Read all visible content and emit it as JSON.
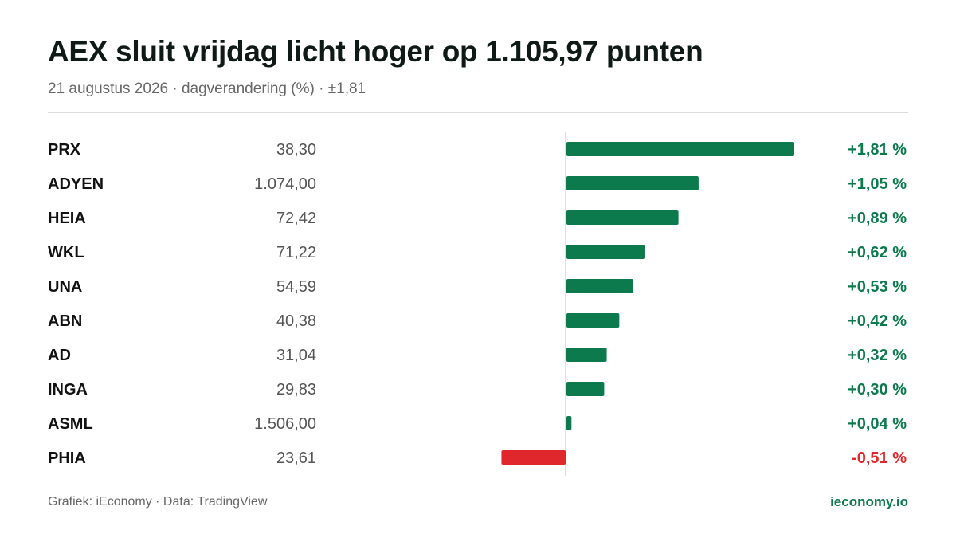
{
  "header": {
    "title": "AEX sluit vrijdag licht hoger op 1.105,97 punten",
    "subtitle": "21 augustus 2026 · dagverandering (%) · ±1,81"
  },
  "footer": {
    "source": "Grafiek: iEconomy · Data: TradingView",
    "brand": "ieconomy.io"
  },
  "colors": {
    "positive": "#0d7a4e",
    "negative": "#e0282c",
    "ticker": "#111111",
    "price": "#555555",
    "axis": "#d6d6d6"
  },
  "chart_data": {
    "type": "bar",
    "orientation": "horizontal",
    "xlim": [
      -1.81,
      1.81
    ],
    "grid": false,
    "legend": "none",
    "categories": [
      "PRX",
      "ADYEN",
      "HEIA",
      "WKL",
      "UNA",
      "ABN",
      "AD",
      "INGA",
      "ASML",
      "PHIA"
    ],
    "prices": [
      "38,30",
      "1.074,00",
      "72,42",
      "71,22",
      "54,59",
      "40,38",
      "31,04",
      "29,83",
      "1.506,00",
      "23,61"
    ],
    "values": [
      1.81,
      1.05,
      0.89,
      0.62,
      0.53,
      0.42,
      0.32,
      0.3,
      0.04,
      -0.51
    ],
    "value_labels": [
      "+1,81 %",
      "+1,05 %",
      "+0,89 %",
      "+0,62 %",
      "+0,53 %",
      "+0,42 %",
      "+0,32 %",
      "+0,30 %",
      "+0,04 %",
      "-0,51 %"
    ]
  }
}
